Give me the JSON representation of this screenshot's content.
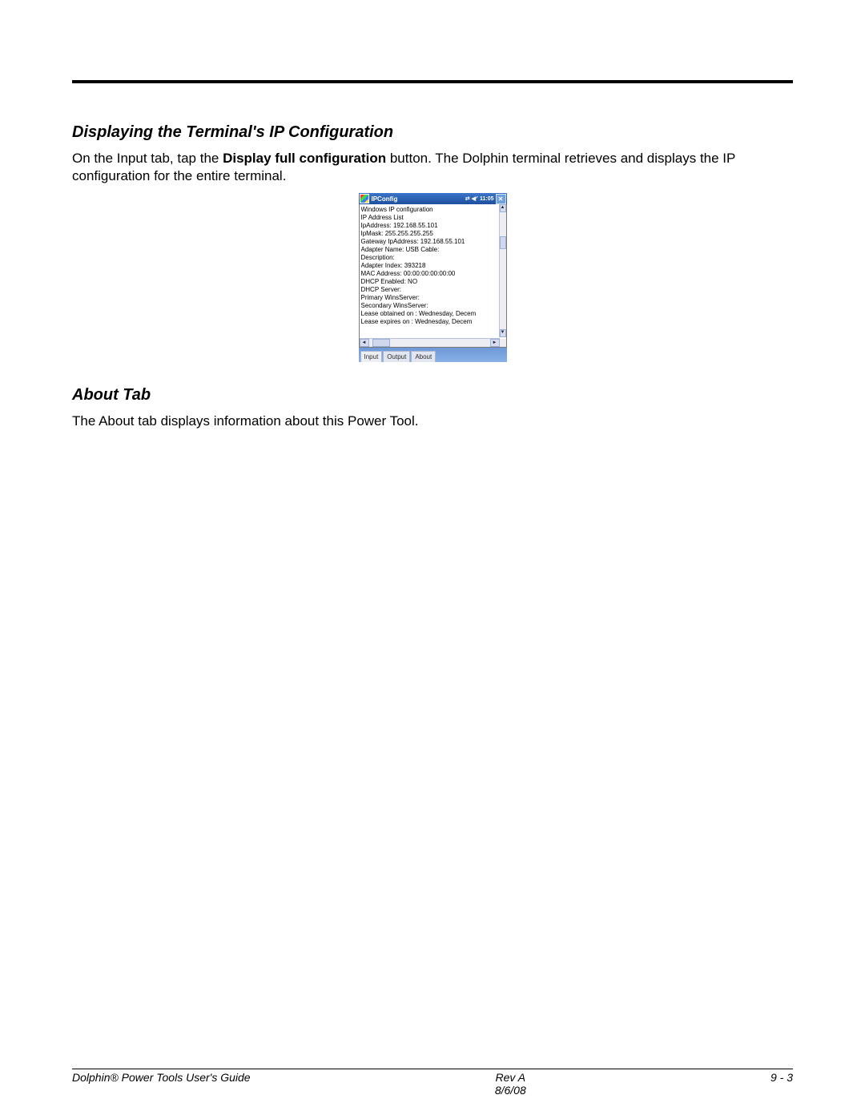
{
  "section1": {
    "heading": "Displaying the Terminal's IP Configuration",
    "para_before": "On the Input tab, tap the ",
    "para_bold": "Display full configuration",
    "para_after": " button. The Dolphin terminal retrieves and displays the IP configuration for the entire terminal."
  },
  "section2": {
    "heading": "About Tab",
    "para": "The About tab displays information about this Power Tool."
  },
  "pda": {
    "title": "IPConfig",
    "time": "11:05",
    "close_glyph": "✕",
    "lines": [
      "Windows IP configuration",
      "IP Address List",
      "IpAddress: 192.168.55.101",
      "IpMask: 255.255.255.255",
      "Gateway IpAddress: 192.168.55.101",
      "Adapter Name: USB Cable:",
      "Description:",
      "Adapter Index: 393218",
      "MAC Address: 00:00:00:00:00:00",
      "DHCP Enabled: NO",
      "DHCP Server:",
      "Primary WinsServer:",
      "Secondary WinsServer:",
      "Lease obtained on : Wednesday, Decem",
      "Lease expires on  : Wednesday, Decem"
    ],
    "tabs": [
      "Input",
      "Output",
      "About"
    ],
    "scroll": {
      "up": "▲",
      "down": "▼",
      "left": "◄",
      "right": "►"
    }
  },
  "footer": {
    "left": "Dolphin® Power Tools User's Guide",
    "center_top": "Rev A",
    "center_bottom": "8/6/08",
    "right": "9 - 3"
  }
}
